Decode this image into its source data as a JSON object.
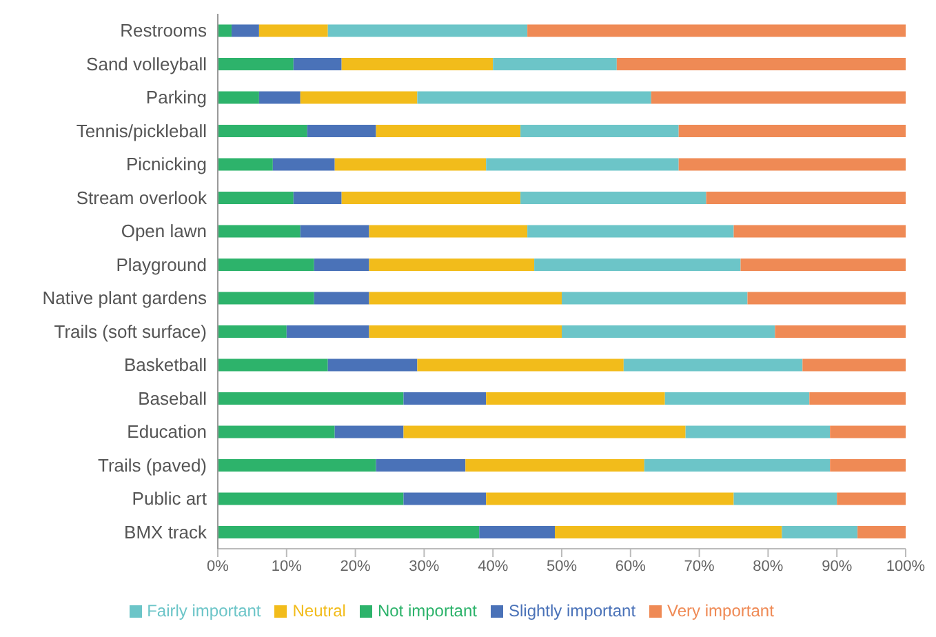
{
  "chart_data": {
    "type": "bar",
    "orientation": "horizontal",
    "stacked": true,
    "categories": [
      "Restrooms",
      "Sand volleyball",
      "Parking",
      "Tennis/pickleball",
      "Picnicking",
      "Stream overlook",
      "Open lawn",
      "Playground",
      "Native plant gardens",
      "Trails (soft surface)",
      "Basketball",
      "Baseball",
      "Education",
      "Trails (paved)",
      "Public art",
      "BMX track"
    ],
    "series": [
      {
        "name": "Not important",
        "color": "#2db36b",
        "values": [
          2,
          11,
          6,
          13,
          8,
          11,
          12,
          14,
          14,
          10,
          16,
          27,
          17,
          23,
          27,
          38
        ]
      },
      {
        "name": "Slightly important",
        "color": "#4a72b8",
        "values": [
          4,
          7,
          6,
          10,
          9,
          7,
          10,
          8,
          8,
          12,
          13,
          12,
          10,
          13,
          12,
          11
        ]
      },
      {
        "name": "Neutral",
        "color": "#f2bc1b",
        "values": [
          10,
          22,
          17,
          21,
          22,
          26,
          23,
          24,
          28,
          28,
          30,
          26,
          41,
          26,
          36,
          33
        ]
      },
      {
        "name": "Fairly important",
        "color": "#6cc5c8",
        "values": [
          29,
          18,
          34,
          23,
          28,
          27,
          30,
          30,
          27,
          31,
          26,
          21,
          21,
          27,
          15,
          11
        ]
      },
      {
        "name": "Very important",
        "color": "#ef8a55",
        "values": [
          55,
          42,
          37,
          33,
          33,
          29,
          25,
          24,
          23,
          19,
          15,
          14,
          11,
          11,
          10,
          7
        ]
      }
    ],
    "xlim": [
      0,
      100
    ],
    "xticks": [
      {
        "value": 0,
        "label": "0%"
      },
      {
        "value": 10,
        "label": "10%"
      },
      {
        "value": 20,
        "label": "20%"
      },
      {
        "value": 30,
        "label": "30%"
      },
      {
        "value": 40,
        "label": "40%"
      },
      {
        "value": 50,
        "label": "50%"
      },
      {
        "value": 60,
        "label": "60%"
      },
      {
        "value": 70,
        "label": "70%"
      },
      {
        "value": 80,
        "label": "80%"
      },
      {
        "value": 90,
        "label": "90%"
      },
      {
        "value": 100,
        "label": "100%"
      }
    ],
    "legend": "bottom"
  }
}
